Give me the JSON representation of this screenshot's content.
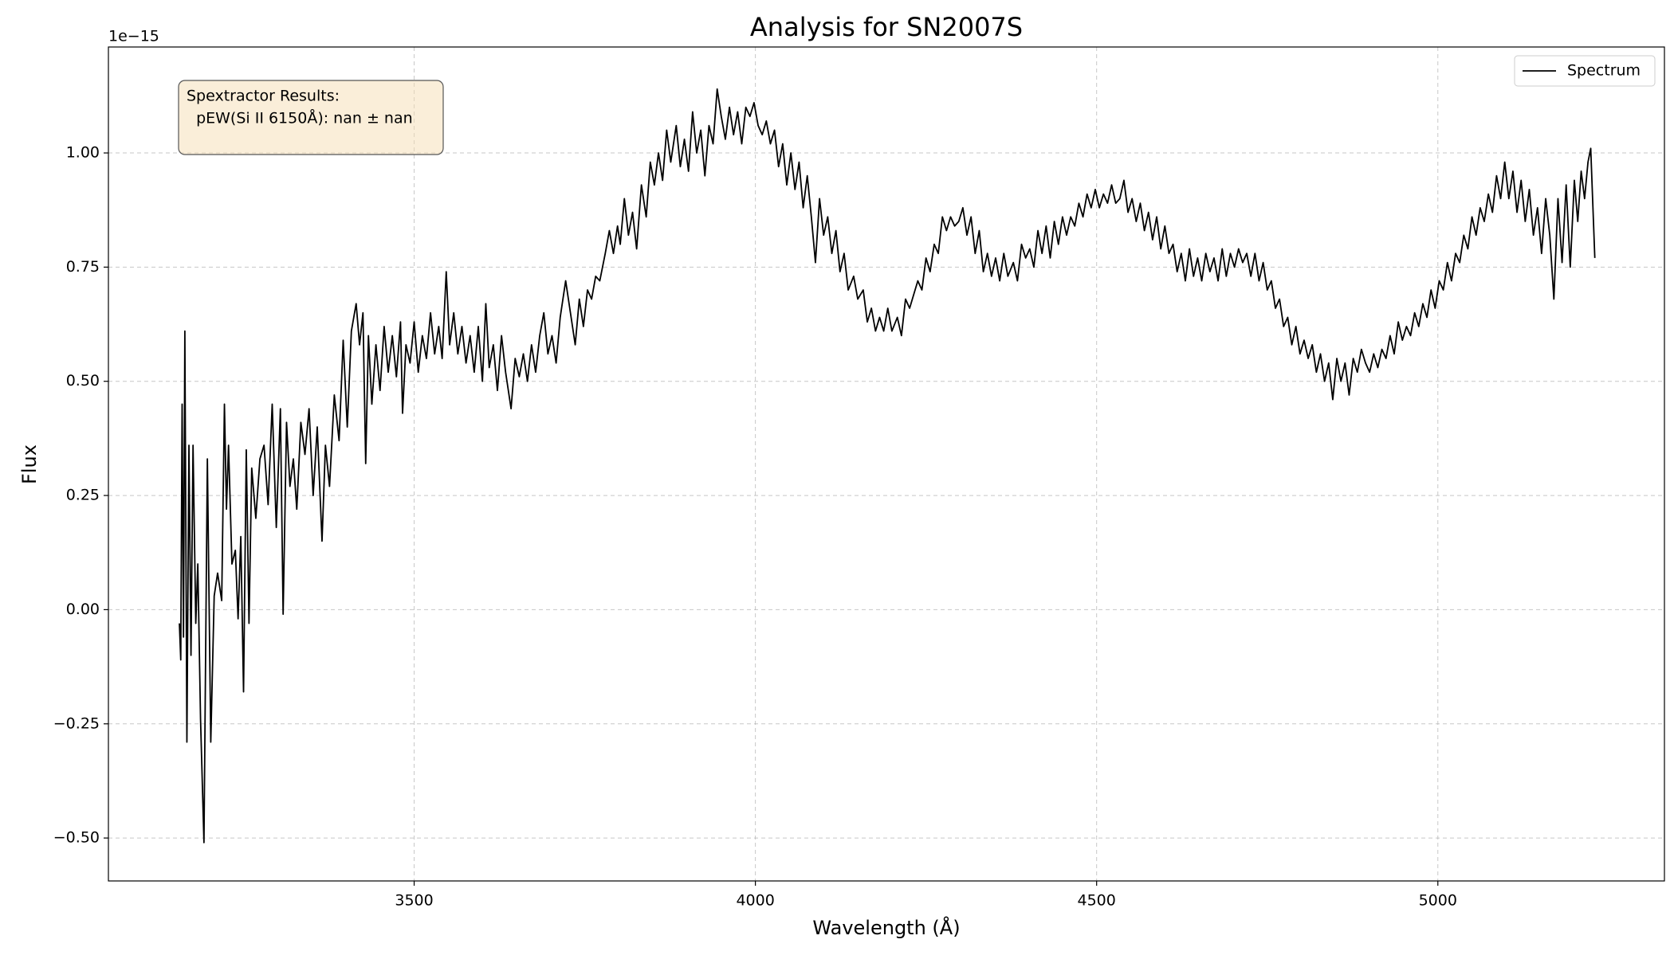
{
  "chart_data": {
    "type": "line",
    "title": "Analysis for SN2007S",
    "xlabel": "Wavelength (Å)",
    "ylabel": "Flux",
    "y_offset_label": "1e−15",
    "annotation": [
      "Spextractor Results:",
      "  pEW(Si II 6150Å): nan ± nan"
    ],
    "legend": "upper right",
    "grid": true,
    "xlim": [
      3052,
      5332
    ],
    "ylim": [
      -0.594,
      1.232
    ],
    "xticks": [
      3500,
      4000,
      4500,
      5000
    ],
    "yticks": [
      {
        "value": -0.5,
        "label": "−0.50"
      },
      {
        "value": -0.25,
        "label": "−0.25"
      },
      {
        "value": 0,
        "label": "0.00"
      },
      0.25,
      {
        "value": 0.5,
        "label": "0.50"
      },
      0.75,
      {
        "value": 1,
        "label": "1.00"
      }
    ],
    "x": [
      3156,
      3158,
      3160,
      3162,
      3164,
      3167,
      3170,
      3173,
      3176,
      3180,
      3183,
      3187,
      3192,
      3197,
      3202,
      3207,
      3212,
      3218,
      3222,
      3225,
      3228,
      3233,
      3238,
      3242,
      3246,
      3250,
      3254,
      3258,
      3262,
      3268,
      3274,
      3280,
      3286,
      3292,
      3298,
      3304,
      3308,
      3313,
      3318,
      3323,
      3328,
      3334,
      3340,
      3346,
      3352,
      3358,
      3365,
      3370,
      3376,
      3383,
      3390,
      3396,
      3402,
      3408,
      3415,
      3420,
      3425,
      3429,
      3433,
      3438,
      3444,
      3450,
      3456,
      3462,
      3468,
      3474,
      3480,
      3483,
      3488,
      3494,
      3500,
      3506,
      3512,
      3518,
      3524,
      3530,
      3536,
      3541,
      3547,
      3552,
      3558,
      3564,
      3570,
      3576,
      3582,
      3588,
      3594,
      3600,
      3605,
      3610,
      3616,
      3622,
      3628,
      3634,
      3642,
      3648,
      3654,
      3660,
      3666,
      3672,
      3678,
      3684,
      3690,
      3696,
      3702,
      3708,
      3714,
      3722,
      3729,
      3736,
      3742,
      3748,
      3754,
      3760,
      3766,
      3772,
      3780,
      3786,
      3792,
      3798,
      3802,
      3808,
      3814,
      3820,
      3826,
      3833,
      3840,
      3846,
      3852,
      3858,
      3864,
      3870,
      3876,
      3884,
      3890,
      3896,
      3902,
      3908,
      3914,
      3920,
      3926,
      3932,
      3938,
      3944,
      3950,
      3956,
      3962,
      3968,
      3974,
      3980,
      3986,
      3992,
      3998,
      4004,
      4010,
      4016,
      4022,
      4028,
      4034,
      4040,
      4046,
      4052,
      4058,
      4064,
      4070,
      4076,
      4082,
      4088,
      4094,
      4100,
      4106,
      4112,
      4118,
      4124,
      4130,
      4136,
      4144,
      4150,
      4158,
      4164,
      4170,
      4176,
      4182,
      4188,
      4194,
      4200,
      4208,
      4214,
      4220,
      4226,
      4232,
      4238,
      4244,
      4250,
      4256,
      4262,
      4268,
      4274,
      4280,
      4286,
      4292,
      4298,
      4304,
      4310,
      4316,
      4322,
      4328,
      4334,
      4340,
      4346,
      4352,
      4358,
      4364,
      4370,
      4378,
      4384,
      4390,
      4396,
      4402,
      4408,
      4414,
      4420,
      4426,
      4432,
      4438,
      4444,
      4450,
      4456,
      4462,
      4468,
      4474,
      4480,
      4486,
      4492,
      4498,
      4504,
      4510,
      4516,
      4522,
      4528,
      4534,
      4540,
      4546,
      4552,
      4558,
      4564,
      4570,
      4576,
      4582,
      4588,
      4594,
      4600,
      4606,
      4612,
      4618,
      4624,
      4630,
      4636,
      4642,
      4648,
      4654,
      4660,
      4666,
      4672,
      4678,
      4684,
      4690,
      4696,
      4702,
      4708,
      4714,
      4720,
      4726,
      4732,
      4738,
      4744,
      4750,
      4756,
      4762,
      4768,
      4774,
      4780,
      4786,
      4792,
      4798,
      4804,
      4810,
      4816,
      4822,
      4828,
      4834,
      4840,
      4846,
      4852,
      4858,
      4864,
      4870,
      4876,
      4882,
      4888,
      4894,
      4900,
      4906,
      4912,
      4918,
      4924,
      4930,
      4936,
      4942,
      4948,
      4954,
      4960,
      4966,
      4972,
      4978,
      4984,
      4990,
      4996,
      5002,
      5008,
      5014,
      5020,
      5026,
      5032,
      5038,
      5044,
      5050,
      5056,
      5062,
      5068,
      5074,
      5080,
      5086,
      5092,
      5098,
      5104,
      5110,
      5116,
      5122,
      5128,
      5134,
      5140,
      5146,
      5152,
      5158,
      5164,
      5170,
      5176,
      5182,
      5188,
      5194,
      5200,
      5205,
      5210,
      5215,
      5220,
      5224,
      5230
    ],
    "series": [
      {
        "name": "Spectrum",
        "color": "#000000",
        "values": [
          -0.03,
          -0.11,
          0.45,
          -0.06,
          0.61,
          -0.29,
          0.36,
          -0.1,
          0.36,
          -0.03,
          0.1,
          -0.24,
          -0.51,
          0.33,
          -0.29,
          0.03,
          0.08,
          0.02,
          0.45,
          0.22,
          0.36,
          0.1,
          0.13,
          -0.02,
          0.16,
          -0.18,
          0.35,
          -0.03,
          0.31,
          0.2,
          0.33,
          0.36,
          0.23,
          0.45,
          0.18,
          0.44,
          -0.01,
          0.41,
          0.27,
          0.33,
          0.22,
          0.41,
          0.34,
          0.44,
          0.25,
          0.4,
          0.15,
          0.36,
          0.27,
          0.47,
          0.37,
          0.59,
          0.4,
          0.61,
          0.67,
          0.58,
          0.65,
          0.32,
          0.6,
          0.45,
          0.58,
          0.48,
          0.62,
          0.52,
          0.6,
          0.51,
          0.63,
          0.43,
          0.58,
          0.54,
          0.63,
          0.52,
          0.6,
          0.55,
          0.65,
          0.56,
          0.62,
          0.55,
          0.74,
          0.58,
          0.65,
          0.56,
          0.62,
          0.54,
          0.6,
          0.52,
          0.62,
          0.5,
          0.67,
          0.53,
          0.58,
          0.48,
          0.6,
          0.52,
          0.44,
          0.55,
          0.51,
          0.56,
          0.5,
          0.58,
          0.52,
          0.6,
          0.65,
          0.56,
          0.6,
          0.54,
          0.64,
          0.72,
          0.65,
          0.58,
          0.68,
          0.62,
          0.7,
          0.68,
          0.73,
          0.72,
          0.78,
          0.83,
          0.78,
          0.84,
          0.8,
          0.9,
          0.82,
          0.87,
          0.79,
          0.93,
          0.86,
          0.98,
          0.93,
          1.0,
          0.94,
          1.05,
          0.98,
          1.06,
          0.97,
          1.03,
          0.96,
          1.09,
          1.0,
          1.05,
          0.95,
          1.06,
          1.02,
          1.14,
          1.08,
          1.03,
          1.1,
          1.04,
          1.09,
          1.02,
          1.1,
          1.08,
          1.11,
          1.06,
          1.04,
          1.07,
          1.02,
          1.05,
          0.97,
          1.02,
          0.93,
          1.0,
          0.92,
          0.98,
          0.88,
          0.95,
          0.86,
          0.76,
          0.9,
          0.82,
          0.86,
          0.78,
          0.83,
          0.74,
          0.78,
          0.7,
          0.73,
          0.68,
          0.7,
          0.63,
          0.66,
          0.61,
          0.64,
          0.61,
          0.66,
          0.61,
          0.64,
          0.6,
          0.68,
          0.66,
          0.69,
          0.72,
          0.7,
          0.77,
          0.74,
          0.8,
          0.78,
          0.86,
          0.83,
          0.86,
          0.84,
          0.85,
          0.88,
          0.82,
          0.86,
          0.78,
          0.83,
          0.74,
          0.78,
          0.73,
          0.77,
          0.72,
          0.78,
          0.73,
          0.76,
          0.72,
          0.8,
          0.77,
          0.79,
          0.75,
          0.83,
          0.78,
          0.84,
          0.77,
          0.85,
          0.8,
          0.86,
          0.82,
          0.86,
          0.84,
          0.89,
          0.86,
          0.91,
          0.88,
          0.92,
          0.88,
          0.91,
          0.89,
          0.93,
          0.89,
          0.9,
          0.94,
          0.87,
          0.9,
          0.85,
          0.89,
          0.83,
          0.87,
          0.81,
          0.86,
          0.79,
          0.84,
          0.78,
          0.8,
          0.74,
          0.78,
          0.72,
          0.79,
          0.73,
          0.77,
          0.72,
          0.78,
          0.74,
          0.77,
          0.72,
          0.79,
          0.73,
          0.78,
          0.75,
          0.79,
          0.76,
          0.78,
          0.73,
          0.78,
          0.72,
          0.76,
          0.7,
          0.72,
          0.66,
          0.68,
          0.62,
          0.64,
          0.58,
          0.62,
          0.56,
          0.59,
          0.55,
          0.58,
          0.52,
          0.56,
          0.5,
          0.54,
          0.46,
          0.55,
          0.5,
          0.54,
          0.47,
          0.55,
          0.52,
          0.57,
          0.54,
          0.52,
          0.56,
          0.53,
          0.57,
          0.55,
          0.6,
          0.56,
          0.63,
          0.59,
          0.62,
          0.6,
          0.65,
          0.62,
          0.67,
          0.64,
          0.7,
          0.66,
          0.72,
          0.7,
          0.76,
          0.72,
          0.78,
          0.76,
          0.82,
          0.79,
          0.86,
          0.82,
          0.88,
          0.85,
          0.91,
          0.87,
          0.95,
          0.9,
          0.98,
          0.9,
          0.96,
          0.87,
          0.94,
          0.85,
          0.92,
          0.82,
          0.88,
          0.78,
          0.9,
          0.82,
          0.68,
          0.9,
          0.76,
          0.93,
          0.75,
          0.94,
          0.85,
          0.96,
          0.9,
          0.98,
          1.01,
          0.77
        ]
      }
    ]
  }
}
